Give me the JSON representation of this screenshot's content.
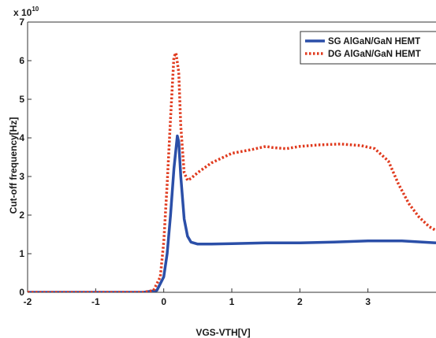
{
  "chart_data": {
    "type": "line",
    "title": "",
    "xlabel": "VGS-VTH[V]",
    "ylabel": "Cut-off frequency[Hz]",
    "xlim": [
      -2,
      4
    ],
    "ylim": [
      0,
      70000000000.0
    ],
    "x_ticks": [
      "-2",
      "-1",
      "0",
      "1",
      "2",
      "3"
    ],
    "y_ticks": [
      "0",
      "1",
      "2",
      "3",
      "4",
      "5",
      "6",
      "7"
    ],
    "y_multiplier_base": "x 10",
    "y_multiplier_exp": "10",
    "legend_position": "top-right",
    "series": [
      {
        "name": "SG AlGaN/GaN HEMT",
        "color": "#2b4fa8",
        "style": "solid",
        "x": [
          -2,
          -1,
          -0.3,
          -0.1,
          0,
          0.05,
          0.1,
          0.15,
          0.2,
          0.22,
          0.25,
          0.3,
          0.35,
          0.4,
          0.5,
          0.7,
          1.0,
          1.5,
          2.0,
          2.5,
          3.0,
          3.5,
          4.0
        ],
        "y": [
          0,
          0,
          0,
          500000000.0,
          4000000000.0,
          10000000000.0,
          20000000000.0,
          32000000000.0,
          40500000000.0,
          39000000000.0,
          30000000000.0,
          19000000000.0,
          14500000000.0,
          13000000000.0,
          12500000000.0,
          12500000000.0,
          12600000000.0,
          12800000000.0,
          12800000000.0,
          13000000000.0,
          13300000000.0,
          13300000000.0,
          12800000000.0
        ]
      },
      {
        "name": "DG AlGaN/GaN HEMT",
        "color": "#e03a1e",
        "style": "dotted",
        "x": [
          -2,
          -1,
          -0.3,
          -0.15,
          -0.05,
          0,
          0.05,
          0.1,
          0.15,
          0.18,
          0.22,
          0.25,
          0.3,
          0.35,
          0.4,
          0.5,
          0.7,
          1.0,
          1.3,
          1.5,
          1.6,
          1.8,
          2.0,
          2.3,
          2.6,
          2.9,
          3.1,
          3.3,
          3.45,
          3.6,
          3.75,
          3.9,
          4.0
        ],
        "y": [
          0,
          0,
          0,
          500000000.0,
          4000000000.0,
          13000000000.0,
          28000000000.0,
          45000000000.0,
          61000000000.0,
          62000000000.0,
          57000000000.0,
          43000000000.0,
          31000000000.0,
          29000000000.0,
          29500000000.0,
          31000000000.0,
          33500000000.0,
          36000000000.0,
          37000000000.0,
          37800000000.0,
          37500000000.0,
          37200000000.0,
          37800000000.0,
          38200000000.0,
          38400000000.0,
          38000000000.0,
          37200000000.0,
          34000000000.0,
          28000000000.0,
          23000000000.0,
          19500000000.0,
          17000000000.0,
          16000000000.0
        ]
      }
    ]
  }
}
